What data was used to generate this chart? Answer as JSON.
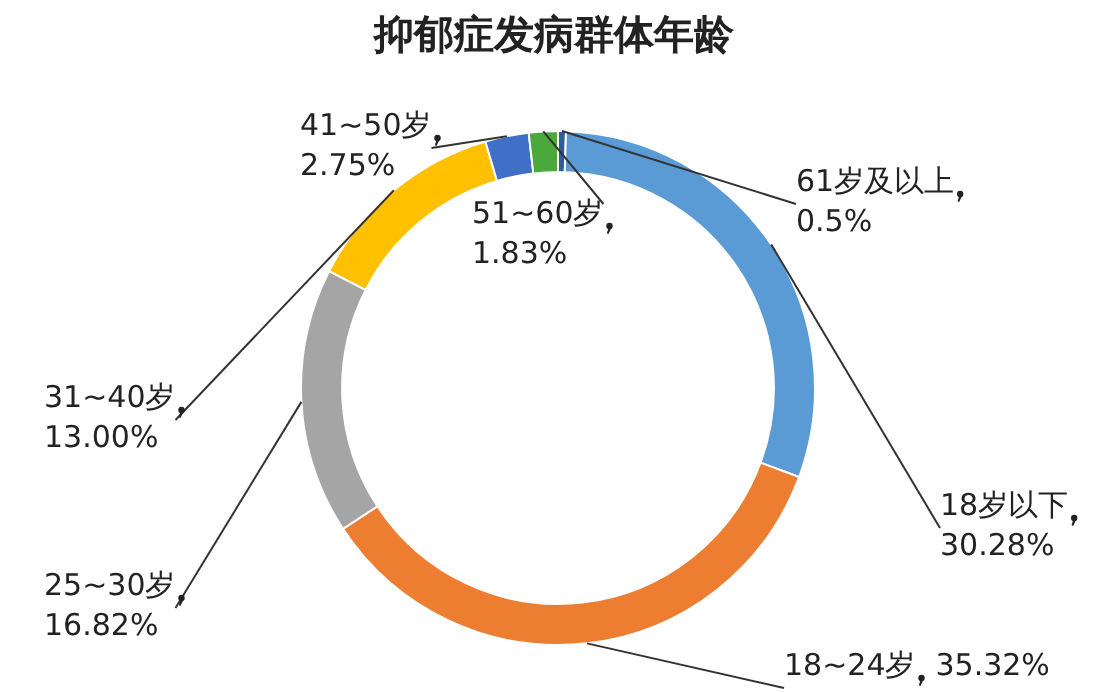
{
  "chart_data": {
    "type": "donut",
    "title": "抑郁症发病群体年龄",
    "categories": [
      "61岁及以上",
      "18岁以下",
      "18~24岁",
      "25~30岁",
      "31~40岁",
      "41~50岁",
      "51~60岁"
    ],
    "values": [
      0.5,
      30.28,
      35.32,
      16.82,
      13.0,
      2.75,
      1.83
    ],
    "value_labels": [
      "0.5%",
      "30.28%",
      "35.32%",
      "16.82%",
      "13.00%",
      "2.75%",
      "1.83%"
    ],
    "colors": [
      "#2e5d9e",
      "#5b9bd5",
      "#ed7d31",
      "#a5a5a5",
      "#ffc000",
      "#3f6fc6",
      "#4aa83c"
    ],
    "legend": false
  }
}
